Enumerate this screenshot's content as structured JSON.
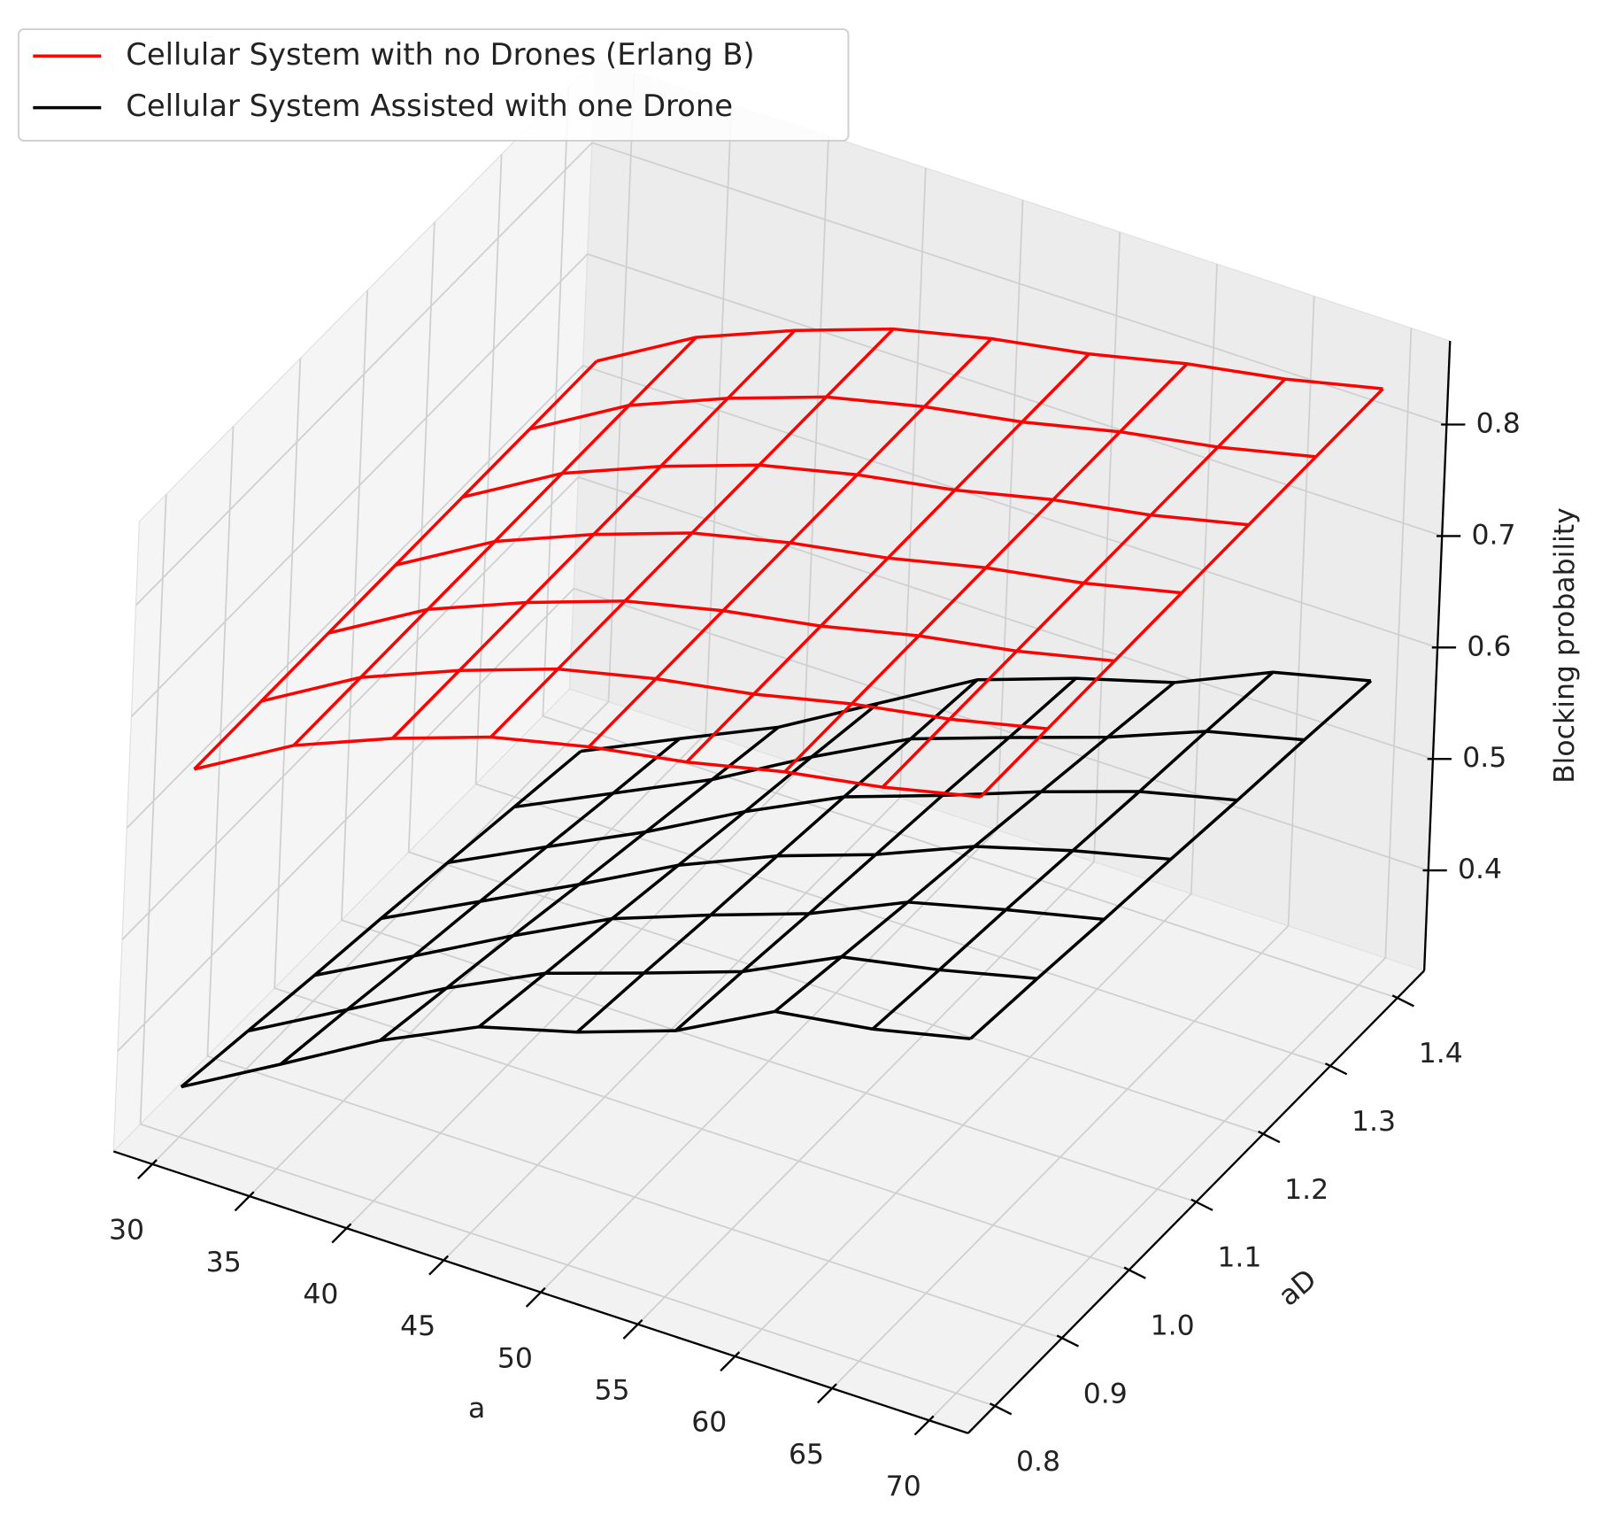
{
  "chart_data": {
    "type": "wireframe3d",
    "x": [
      30,
      35,
      40,
      45,
      50,
      55,
      60,
      65,
      70
    ],
    "y": [
      0.8,
      0.9,
      {
        "value": 1,
        "label": "1.0"
      },
      1.1,
      1.2,
      1.3,
      1.4
    ],
    "xlabel": "a",
    "ylabel": "aD",
    "zlabel": "Blocking probability",
    "xlim": [
      28,
      72
    ],
    "ylim": [
      0.76,
      1.44
    ],
    "zlim": [
      0.31,
      0.875
    ],
    "xticks": [
      30,
      35,
      40,
      45,
      50,
      55,
      60,
      65,
      70
    ],
    "yticks": [
      0.8,
      0.9,
      {
        "value": 1,
        "label": "1.0"
      },
      1.1,
      1.2,
      1.3,
      1.4
    ],
    "zticks": [
      0.4,
      0.5,
      0.6,
      0.7,
      0.8
    ],
    "grid": true,
    "legend": "upper left",
    "series": [
      {
        "name": "Cellular System with no Drones (Erlang B)",
        "color": "#ff0000",
        "values": [
          [
            0.64,
            0.69,
            0.725,
            0.755,
            0.775,
            0.79,
            0.81,
            0.825,
            0.845
          ],
          [
            0.64,
            0.69,
            0.725,
            0.755,
            0.775,
            0.79,
            0.81,
            0.825,
            0.845
          ],
          [
            0.64,
            0.69,
            0.725,
            0.755,
            0.775,
            0.79,
            0.81,
            0.825,
            0.845
          ],
          [
            0.64,
            0.69,
            0.725,
            0.755,
            0.775,
            0.79,
            0.81,
            0.825,
            0.845
          ],
          [
            0.64,
            0.69,
            0.725,
            0.755,
            0.775,
            0.79,
            0.81,
            0.825,
            0.845
          ],
          [
            0.64,
            0.69,
            0.725,
            0.755,
            0.775,
            0.79,
            0.81,
            0.825,
            0.845
          ],
          [
            0.64,
            0.69,
            0.725,
            0.755,
            0.775,
            0.79,
            0.81,
            0.825,
            0.845
          ]
        ]
      },
      {
        "name": "Cellular System Assisted with one Drone",
        "color": "#000000",
        "values": [
          [
            0.355,
            0.404,
            0.454,
            0.495,
            0.519,
            0.549,
            0.595,
            0.608,
            0.628
          ],
          [
            0.344,
            0.392,
            0.44,
            0.482,
            0.511,
            0.541,
            0.583,
            0.6,
            0.621
          ],
          [
            0.333,
            0.379,
            0.426,
            0.47,
            0.502,
            0.532,
            0.571,
            0.593,
            0.613
          ],
          [
            0.323,
            0.367,
            0.411,
            0.457,
            0.494,
            0.524,
            0.56,
            0.585,
            0.606
          ],
          [
            0.312,
            0.355,
            0.397,
            0.444,
            0.486,
            0.516,
            0.548,
            0.577,
            0.598
          ],
          [
            0.301,
            0.342,
            0.383,
            0.432,
            0.477,
            0.507,
            0.536,
            0.57,
            0.591
          ],
          [
            0.29,
            0.33,
            0.369,
            0.419,
            0.469,
            0.499,
            0.524,
            0.562,
            0.583
          ]
        ]
      }
    ]
  }
}
